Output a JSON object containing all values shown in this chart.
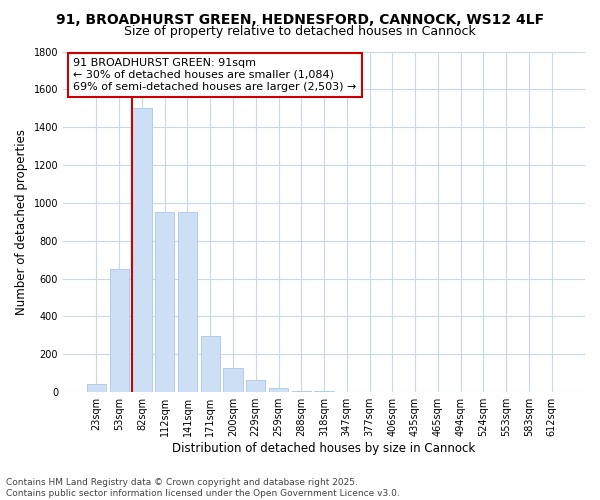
{
  "title_line1": "91, BROADHURST GREEN, HEDNESFORD, CANNOCK, WS12 4LF",
  "title_line2": "Size of property relative to detached houses in Cannock",
  "xlabel": "Distribution of detached houses by size in Cannock",
  "ylabel": "Number of detached properties",
  "categories": [
    "23sqm",
    "53sqm",
    "82sqm",
    "112sqm",
    "141sqm",
    "171sqm",
    "200sqm",
    "229sqm",
    "259sqm",
    "288sqm",
    "318sqm",
    "347sqm",
    "377sqm",
    "406sqm",
    "435sqm",
    "465sqm",
    "494sqm",
    "524sqm",
    "553sqm",
    "583sqm",
    "612sqm"
  ],
  "values": [
    45,
    650,
    1500,
    950,
    950,
    295,
    130,
    65,
    22,
    8,
    8,
    0,
    0,
    0,
    0,
    0,
    0,
    0,
    0,
    0,
    0
  ],
  "bar_color": "#ccdff5",
  "bar_edge_color": "#aac8e8",
  "vline_color": "#cc0000",
  "annotation_text": "91 BROADHURST GREEN: 91sqm\n← 30% of detached houses are smaller (1,084)\n69% of semi-detached houses are larger (2,503) →",
  "annotation_box_color": "#ffffff",
  "annotation_box_edge_color": "#cc0000",
  "ylim": [
    0,
    1800
  ],
  "yticks": [
    0,
    200,
    400,
    600,
    800,
    1000,
    1200,
    1400,
    1600,
    1800
  ],
  "plot_bg_color": "#ffffff",
  "fig_bg_color": "#ffffff",
  "grid_color": "#c8d8e8",
  "footer_text": "Contains HM Land Registry data © Crown copyright and database right 2025.\nContains public sector information licensed under the Open Government Licence v3.0.",
  "title_fontsize": 10,
  "subtitle_fontsize": 9,
  "tick_fontsize": 7,
  "label_fontsize": 8.5,
  "annotation_fontsize": 8,
  "footer_fontsize": 6.5
}
